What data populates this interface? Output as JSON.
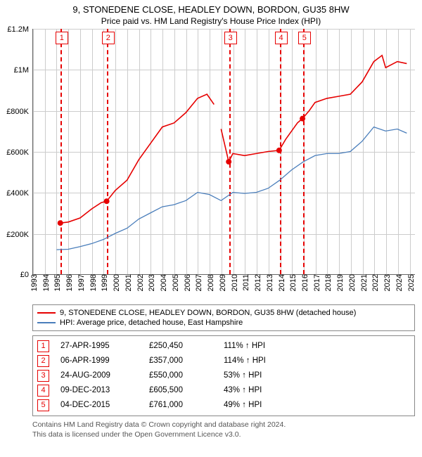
{
  "title_line1": "9, STONEDENE CLOSE, HEADLEY DOWN, BORDON, GU35 8HW",
  "title_line2": "Price paid vs. HM Land Registry's House Price Index (HPI)",
  "chart": {
    "type": "line",
    "ylim": [
      0,
      1200000
    ],
    "yticks": [
      0,
      200000,
      400000,
      600000,
      800000,
      1000000,
      1200000
    ],
    "yticklabels": [
      "£0",
      "£200K",
      "£400K",
      "£600K",
      "£800K",
      "£1M",
      "£1.2M"
    ],
    "xlim": [
      1993,
      2025.5
    ],
    "xticks": [
      1993,
      1994,
      1995,
      1996,
      1997,
      1998,
      1999,
      2000,
      2001,
      2002,
      2003,
      2004,
      2005,
      2006,
      2007,
      2008,
      2009,
      2010,
      2011,
      2012,
      2013,
      2014,
      2015,
      2016,
      2017,
      2018,
      2019,
      2020,
      2021,
      2022,
      2023,
      2024,
      2025
    ],
    "grid_color": "#cccccc",
    "axis_color": "#666666",
    "background_color": "#ffffff",
    "series": {
      "property": {
        "color": "#e60000",
        "width": 1.6,
        "points": [
          [
            1995.32,
            250450
          ],
          [
            1996,
            255000
          ],
          [
            1997,
            275000
          ],
          [
            1998,
            320000
          ],
          [
            1998.8,
            350000
          ],
          [
            1999.26,
            357000
          ],
          [
            2000,
            410000
          ],
          [
            2001,
            460000
          ],
          [
            2002,
            560000
          ],
          [
            2003,
            640000
          ],
          [
            2004,
            720000
          ],
          [
            2005,
            740000
          ],
          [
            2006,
            790000
          ],
          [
            2007,
            860000
          ],
          [
            2007.8,
            880000
          ],
          [
            2008.4,
            830000
          ],
          [
            2009.0,
            710000
          ],
          [
            2009.65,
            550000
          ],
          [
            2010,
            590000
          ],
          [
            2011,
            580000
          ],
          [
            2012,
            590000
          ],
          [
            2013,
            600000
          ],
          [
            2013.94,
            605500
          ],
          [
            2014.5,
            660000
          ],
          [
            2015.5,
            740000
          ],
          [
            2015.93,
            761000
          ],
          [
            2016.5,
            800000
          ],
          [
            2017,
            840000
          ],
          [
            2018,
            860000
          ],
          [
            2019,
            870000
          ],
          [
            2020,
            880000
          ],
          [
            2021,
            940000
          ],
          [
            2022,
            1040000
          ],
          [
            2022.7,
            1070000
          ],
          [
            2023,
            1010000
          ],
          [
            2024,
            1040000
          ],
          [
            2024.8,
            1030000
          ]
        ],
        "gap_before_index": 16,
        "markers": [
          {
            "num": "1",
            "x": 1995.32,
            "y": 250450,
            "color": "#e60000"
          },
          {
            "num": "2",
            "x": 1999.26,
            "y": 357000,
            "color": "#e60000"
          },
          {
            "num": "3",
            "x": 2009.65,
            "y": 550000,
            "color": "#e60000"
          },
          {
            "num": "4",
            "x": 2013.94,
            "y": 605500,
            "color": "#e60000"
          },
          {
            "num": "5",
            "x": 2015.93,
            "y": 761000,
            "color": "#e60000"
          }
        ]
      },
      "hpi": {
        "color": "#4a7ebb",
        "width": 1.3,
        "points": [
          [
            1995,
            120000
          ],
          [
            1996,
            122000
          ],
          [
            1997,
            135000
          ],
          [
            1998,
            150000
          ],
          [
            1999,
            170000
          ],
          [
            2000,
            200000
          ],
          [
            2001,
            225000
          ],
          [
            2002,
            270000
          ],
          [
            2003,
            300000
          ],
          [
            2004,
            330000
          ],
          [
            2005,
            340000
          ],
          [
            2006,
            360000
          ],
          [
            2007,
            400000
          ],
          [
            2008,
            390000
          ],
          [
            2009,
            360000
          ],
          [
            2010,
            400000
          ],
          [
            2011,
            395000
          ],
          [
            2012,
            400000
          ],
          [
            2013,
            420000
          ],
          [
            2014,
            460000
          ],
          [
            2015,
            510000
          ],
          [
            2016,
            550000
          ],
          [
            2017,
            580000
          ],
          [
            2018,
            590000
          ],
          [
            2019,
            590000
          ],
          [
            2020,
            600000
          ],
          [
            2021,
            650000
          ],
          [
            2022,
            720000
          ],
          [
            2023,
            700000
          ],
          [
            2024,
            710000
          ],
          [
            2024.8,
            690000
          ]
        ]
      }
    }
  },
  "legend": {
    "items": [
      {
        "color": "#e60000",
        "label": "9, STONEDENE CLOSE, HEADLEY DOWN, BORDON, GU35 8HW (detached house)"
      },
      {
        "color": "#4a7ebb",
        "label": "HPI: Average price, detached house, East Hampshire"
      }
    ]
  },
  "sales": [
    {
      "num": "1",
      "date": "27-APR-1995",
      "price": "£250,450",
      "pct": "111% ↑ HPI",
      "color": "#e60000"
    },
    {
      "num": "2",
      "date": "06-APR-1999",
      "price": "£357,000",
      "pct": "114% ↑ HPI",
      "color": "#e60000"
    },
    {
      "num": "3",
      "date": "24-AUG-2009",
      "price": "£550,000",
      "pct": "53% ↑ HPI",
      "color": "#e60000"
    },
    {
      "num": "4",
      "date": "09-DEC-2013",
      "price": "£605,500",
      "pct": "43% ↑ HPI",
      "color": "#e60000"
    },
    {
      "num": "5",
      "date": "04-DEC-2015",
      "price": "£761,000",
      "pct": "49% ↑ HPI",
      "color": "#e60000"
    }
  ],
  "footer_line1": "Contains HM Land Registry data © Crown copyright and database right 2024.",
  "footer_line2": "This data is licensed under the Open Government Licence v3.0."
}
